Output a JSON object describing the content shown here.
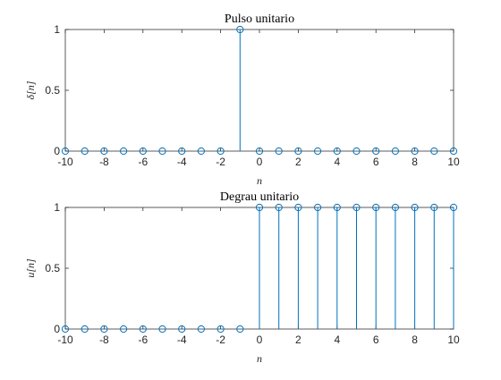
{
  "chart_data": [
    {
      "type": "stem",
      "title": "Pulso unitario",
      "xlabel": "n",
      "ylabel": "δ[n]",
      "x": [
        -10,
        -9,
        -8,
        -7,
        -6,
        -5,
        -4,
        -3,
        -2,
        -1,
        0,
        1,
        2,
        3,
        4,
        5,
        6,
        7,
        8,
        9,
        10
      ],
      "values": [
        0,
        0,
        0,
        0,
        0,
        0,
        0,
        0,
        0,
        1,
        0,
        0,
        0,
        0,
        0,
        0,
        0,
        0,
        0,
        0,
        0
      ],
      "xlim": [
        -10,
        10
      ],
      "ylim": [
        0,
        1
      ],
      "xticks": [
        "-10",
        "-8",
        "-6",
        "-4",
        "-2",
        "0",
        "2",
        "4",
        "6",
        "8",
        "10"
      ],
      "yticks": [
        "0",
        "0.5",
        "1"
      ],
      "grid": false,
      "color": "#0072BD"
    },
    {
      "type": "stem",
      "title": "Degrau unitario",
      "xlabel": "n",
      "ylabel": "u[n]",
      "x": [
        -10,
        -9,
        -8,
        -7,
        -6,
        -5,
        -4,
        -3,
        -2,
        -1,
        0,
        1,
        2,
        3,
        4,
        5,
        6,
        7,
        8,
        9,
        10
      ],
      "values": [
        0,
        0,
        0,
        0,
        0,
        0,
        0,
        0,
        0,
        0,
        1,
        1,
        1,
        1,
        1,
        1,
        1,
        1,
        1,
        1,
        1
      ],
      "xlim": [
        -10,
        10
      ],
      "ylim": [
        0,
        1
      ],
      "xticks": [
        "-10",
        "-8",
        "-6",
        "-4",
        "-2",
        "0",
        "2",
        "4",
        "6",
        "8",
        "10"
      ],
      "yticks": [
        "0",
        "0.5",
        "1"
      ],
      "grid": false,
      "color": "#0072BD"
    }
  ]
}
